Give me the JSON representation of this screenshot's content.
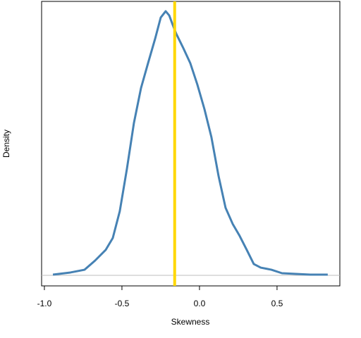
{
  "chart_data": {
    "type": "density",
    "xlabel": "Skewness",
    "ylabel": "Density",
    "x": [
      -0.945,
      -0.832,
      -0.741,
      -0.673,
      -0.605,
      -0.559,
      -0.514,
      -0.468,
      -0.423,
      -0.377,
      -0.332,
      -0.286,
      -0.25,
      -0.218,
      -0.195,
      -0.173,
      -0.15,
      -0.105,
      -0.059,
      -0.014,
      0.032,
      0.077,
      0.123,
      0.168,
      0.214,
      0.259,
      0.305,
      0.35,
      0.395,
      0.464,
      0.532,
      0.623,
      0.714,
      0.827
    ],
    "values": [
      0.007,
      0.027,
      0.053,
      0.14,
      0.24,
      0.353,
      0.607,
      1.007,
      1.44,
      1.773,
      2.007,
      2.24,
      2.44,
      2.5,
      2.46,
      2.373,
      2.287,
      2.153,
      2.007,
      1.807,
      1.573,
      1.307,
      0.94,
      0.64,
      0.487,
      0.373,
      0.24,
      0.107,
      0.073,
      0.053,
      0.02,
      0.013,
      0.007,
      0.007
    ],
    "color": "#4682b4",
    "vline": -0.16,
    "vline_color": "#ffd700",
    "hline": 0,
    "hline_color": "#bebebe",
    "xlim": [
      -1.018,
      0.905
    ],
    "ylim": [
      -0.1,
      2.593
    ],
    "xticks": [
      {
        "value": -1,
        "label": "-1.0"
      },
      -0.5,
      {
        "value": 0,
        "label": "0.0"
      },
      0.5
    ]
  }
}
